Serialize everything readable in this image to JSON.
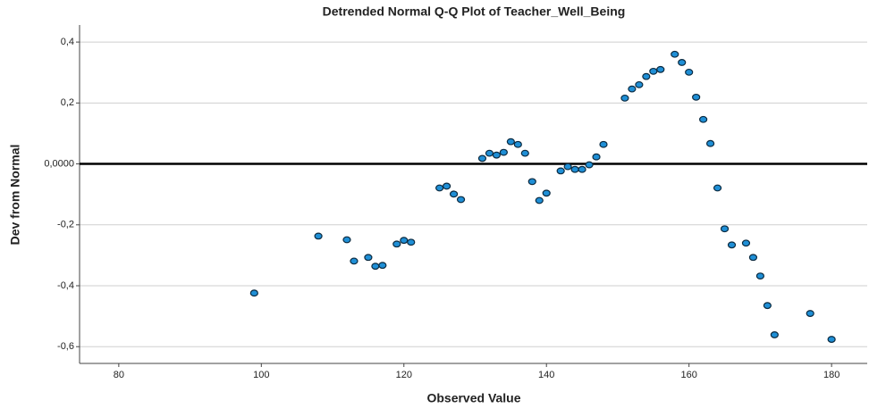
{
  "chart_data": {
    "type": "scatter",
    "title": "Detrended Normal Q-Q Plot of Teacher_Well_Being",
    "x_label": "Observed Value",
    "y_label": "Dev from Normal",
    "x": [
      99,
      108,
      112,
      113,
      115,
      116,
      117,
      119,
      120,
      121,
      125,
      126,
      127,
      128,
      131,
      132,
      133,
      134,
      135,
      136,
      137,
      138,
      139,
      140,
      142,
      143,
      144,
      145,
      146,
      147,
      148,
      151,
      152,
      153,
      154,
      155,
      156,
      158,
      159,
      160,
      161,
      162,
      163,
      164,
      165,
      166,
      168,
      169,
      170,
      171,
      172,
      177,
      180
    ],
    "y": [
      -0.424,
      -0.237,
      -0.249,
      -0.319,
      -0.307,
      -0.336,
      -0.333,
      -0.263,
      -0.251,
      -0.257,
      -0.079,
      -0.073,
      -0.099,
      -0.117,
      0.018,
      0.035,
      0.029,
      0.038,
      0.073,
      0.064,
      0.035,
      -0.058,
      -0.12,
      -0.096,
      -0.023,
      -0.009,
      -0.018,
      -0.018,
      -0.003,
      0.023,
      0.064,
      0.216,
      0.246,
      0.26,
      0.287,
      0.304,
      0.31,
      0.36,
      0.333,
      0.301,
      0.219,
      0.146,
      0.067,
      -0.079,
      -0.213,
      -0.266,
      -0.26,
      -0.307,
      -0.368,
      -0.465,
      -0.561,
      -0.491,
      -0.576
    ],
    "color": "#1f8fd6",
    "xlim": [
      74.5,
      185
    ],
    "xticks": [
      80,
      100,
      120,
      140,
      160,
      180
    ],
    "ylim": [
      -0.655,
      0.456
    ],
    "yticks": [
      {
        "value": 0.4,
        "label": "0,4"
      },
      {
        "value": 0.2,
        "label": "0,2"
      },
      {
        "value": 0,
        "label": "0,0000"
      },
      {
        "value": -0.2,
        "label": "-0,2"
      },
      {
        "value": -0.4,
        "label": "-0,4"
      },
      {
        "value": -0.6,
        "label": "-0,6"
      }
    ],
    "grid": true,
    "reference_line": {
      "y": 0,
      "color": "#000000"
    }
  }
}
